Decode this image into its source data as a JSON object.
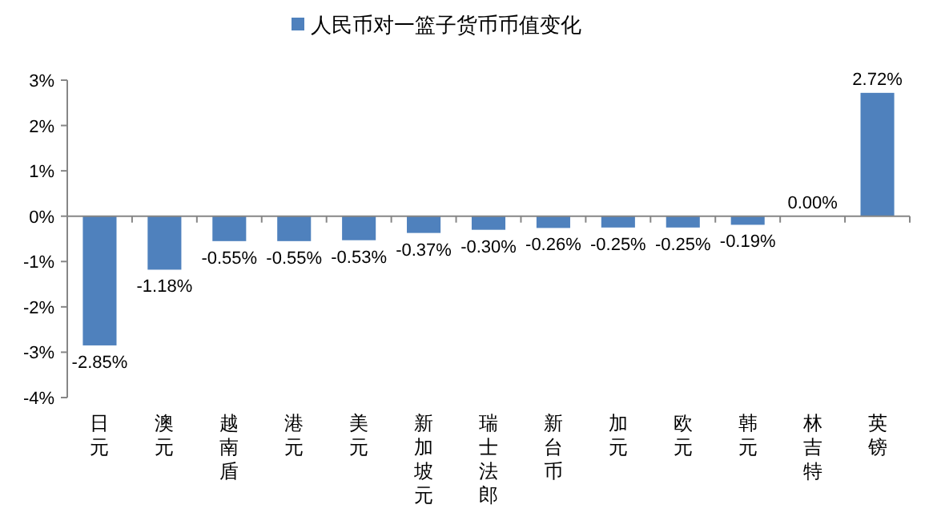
{
  "chart_data": {
    "type": "bar",
    "categories": [
      "日元",
      "澳元",
      "越南盾",
      "港元",
      "美元",
      "新加坡元",
      "瑞士法郎",
      "新台币",
      "加元",
      "欧元",
      "韩元",
      "林吉特",
      "英镑"
    ],
    "series": [
      {
        "name": "人民币对一篮子货币币值变化",
        "color": "#4f81bd",
        "values": [
          -2.85,
          -1.18,
          -0.55,
          -0.55,
          -0.53,
          -0.37,
          -0.3,
          -0.26,
          -0.25,
          -0.25,
          -0.19,
          0.0,
          2.72
        ],
        "value_labels": [
          "-2.85%",
          "-1.18%",
          "-0.55%",
          "-0.55%",
          "-0.53%",
          "-0.37%",
          "-0.30%",
          "-0.26%",
          "-0.25%",
          "-0.25%",
          "-0.19%",
          "0.00%",
          "2.72%"
        ]
      }
    ],
    "ylim": [
      -4,
      3
    ],
    "yticks": [
      {
        "value": -4,
        "label": "-4%"
      },
      {
        "value": -3,
        "label": "-3%"
      },
      {
        "value": -2,
        "label": "-2%"
      },
      {
        "value": -1,
        "label": "-1%"
      },
      {
        "value": 0,
        "label": "0%"
      },
      {
        "value": 1,
        "label": "1%"
      },
      {
        "value": 2,
        "label": "2%"
      },
      {
        "value": 3,
        "label": "3%"
      }
    ],
    "legend": "top"
  }
}
